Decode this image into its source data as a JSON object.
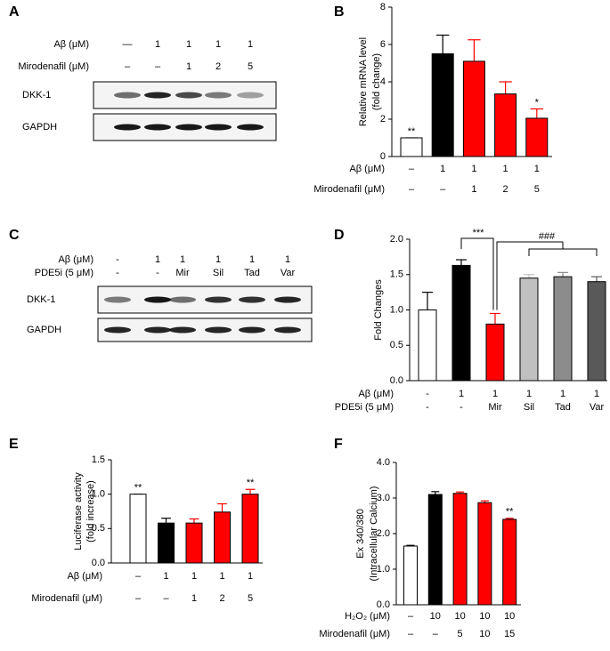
{
  "blots": [
    {
      "panel_label": "A",
      "condition_rows": [
        {
          "label": "Aβ (μM)",
          "values": [
            "—",
            "1",
            "1",
            "1",
            "1"
          ]
        },
        {
          "label": "Mirodenafil (μM)",
          "values": [
            "–",
            "–",
            "1",
            "2",
            "5"
          ]
        }
      ],
      "bands": [
        "DKK-1",
        "GAPDH"
      ]
    },
    {
      "panel_label": "C",
      "condition_rows": [
        {
          "label": "Aβ (μM)",
          "values": [
            "-",
            "1",
            "1",
            "1",
            "1",
            "1"
          ]
        },
        {
          "label": "PDE5i (5 μM)",
          "values": [
            "-",
            "-",
            "Mir",
            "Sil",
            "Tad",
            "Var"
          ]
        }
      ],
      "bands": [
        "DKK-1",
        "GAPDH"
      ]
    }
  ],
  "chart_data": [
    {
      "type": "bar",
      "panel_label": "B",
      "ylabel": [
        "Relative mRNA level",
        "(fold change)"
      ],
      "ylim": [
        0,
        8
      ],
      "yticks": [
        0,
        2,
        4,
        6,
        8
      ],
      "values": [
        1.0,
        5.5,
        5.1,
        3.35,
        2.05
      ],
      "errors": [
        0,
        1.0,
        1.15,
        0.65,
        0.5
      ],
      "colors": [
        "#ffffff",
        "#000000",
        "#ff0000",
        "#ff0000",
        "#ff0000"
      ],
      "annotations": [
        "**",
        null,
        null,
        null,
        "*"
      ],
      "condition_rows": [
        {
          "label": "Aβ (μM)",
          "values": [
            "–",
            "1",
            "1",
            "1",
            "1"
          ]
        },
        {
          "label": "Mirodenafil (μM)",
          "values": [
            "–",
            "–",
            "1",
            "2",
            "5"
          ]
        }
      ]
    },
    {
      "type": "bar",
      "panel_label": "D",
      "ylabel": [
        "Fold Changes"
      ],
      "ylim": [
        0,
        2.0
      ],
      "yticks": [
        {
          "value": 0,
          "label": "0.0"
        },
        0.5,
        {
          "value": 1,
          "label": "1.0"
        },
        1.5,
        {
          "value": 2,
          "label": "2.0"
        }
      ],
      "values": [
        1.0,
        1.63,
        0.8,
        1.45,
        1.47,
        1.4
      ],
      "errors": [
        0.25,
        0.08,
        0.15,
        0.05,
        0.06,
        0.07
      ],
      "colors": [
        "#ffffff",
        "#000000",
        "#ff0000",
        "#c0c0c0",
        "#8c8c8c",
        "#595959"
      ],
      "annotations": [
        null,
        null,
        null,
        null,
        null,
        null
      ],
      "brackets": [
        "***",
        "###"
      ],
      "condition_rows": [
        {
          "label": "Aβ (μM)",
          "values": [
            "-",
            "1",
            "1",
            "1",
            "1",
            "1"
          ]
        },
        {
          "label": "PDE5i (5 μM)",
          "values": [
            "-",
            "-",
            "Mir",
            "Sil",
            "Tad",
            "Var"
          ]
        }
      ]
    },
    {
      "type": "bar",
      "panel_label": "E",
      "ylabel": [
        "Luciferase activity",
        "(fold increase)"
      ],
      "ylim": [
        0,
        1.5
      ],
      "yticks": [
        {
          "value": 0,
          "label": "0.0"
        },
        0.5,
        {
          "value": 1,
          "label": "1.0"
        },
        1.5
      ],
      "values": [
        1.0,
        0.58,
        0.58,
        0.74,
        1.0
      ],
      "errors": [
        0,
        0.07,
        0.06,
        0.12,
        0.07
      ],
      "colors": [
        "#ffffff",
        "#000000",
        "#ff0000",
        "#ff0000",
        "#ff0000"
      ],
      "annotations": [
        "**",
        null,
        null,
        null,
        "**"
      ],
      "condition_rows": [
        {
          "label": "Aβ (μM)",
          "values": [
            "–",
            "1",
            "1",
            "1",
            "1"
          ]
        },
        {
          "label": "Mirodenafil (μM)",
          "values": [
            "–",
            "–",
            "1",
            "2",
            "5"
          ]
        }
      ]
    },
    {
      "type": "bar",
      "panel_label": "F",
      "ylabel": [
        "Ex 340/380",
        "(Intracellular Calcium)"
      ],
      "ylim": [
        0,
        4.0
      ],
      "yticks": [
        {
          "value": 0,
          "label": "0.0"
        },
        {
          "value": 1,
          "label": "1.0"
        },
        {
          "value": 2,
          "label": "2.0"
        },
        {
          "value": 3,
          "label": "3.0"
        },
        {
          "value": 4,
          "label": "4.0"
        }
      ],
      "values": [
        1.65,
        3.1,
        3.13,
        2.87,
        2.4
      ],
      "errors": [
        0.02,
        0.08,
        0.04,
        0.05,
        0.03
      ],
      "colors": [
        "#ffffff",
        "#000000",
        "#ff0000",
        "#ff0000",
        "#ff0000"
      ],
      "annotations": [
        null,
        null,
        null,
        null,
        "**"
      ],
      "condition_rows": [
        {
          "label": "H₂O₂ (μM)",
          "values": [
            "–",
            "10",
            "10",
            "10",
            "10"
          ]
        },
        {
          "label": "Mirodenafil (μM)",
          "values": [
            "–",
            "–",
            "5",
            "10",
            "15"
          ]
        }
      ]
    }
  ]
}
